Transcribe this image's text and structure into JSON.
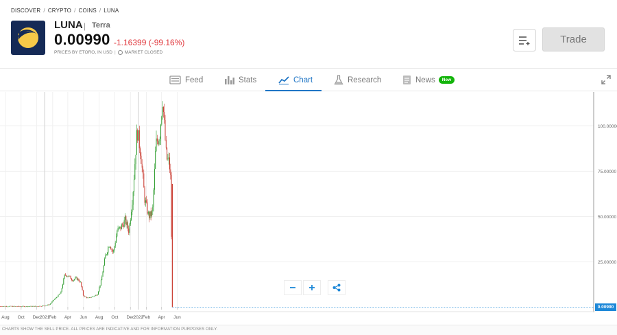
{
  "breadcrumb": {
    "discover": "DISCOVER",
    "crypto": "CRYPTO",
    "coins": "COINS",
    "luna": "LUNA",
    "separator": "/"
  },
  "instrument": {
    "symbol": "LUNA",
    "name": "Terra",
    "price": "0.00990",
    "change": "-1.16399 (-99.16%)",
    "price_note": "PRICES BY ETORO, IN USD",
    "market_status": "MARKET CLOSED",
    "logo_icon": "terra-luna-logo",
    "change_color": "#e0363b"
  },
  "actions": {
    "watchlist_icon": "add-to-list-icon",
    "trade_label": "Trade"
  },
  "tabs": [
    {
      "label": "Feed",
      "icon": "feed-icon",
      "active": false
    },
    {
      "label": "Stats",
      "icon": "stats-icon",
      "active": false
    },
    {
      "label": "Chart",
      "icon": "chart-icon",
      "active": true
    },
    {
      "label": "Research",
      "icon": "flask-icon",
      "active": false
    },
    {
      "label": "News",
      "icon": "news-icon",
      "active": false,
      "badge": "New"
    }
  ],
  "colors": {
    "accent": "#1f75c5",
    "up_candle": "#2e9c2e",
    "down_candle": "#c8362b",
    "price_tag": "#1e88d8"
  },
  "chart_data": {
    "type": "candlestick",
    "y_ticks": [
      "100.00000",
      "75.00000",
      "50.00000",
      "25.00000"
    ],
    "y_tick_values": [
      100,
      75,
      50,
      25
    ],
    "x_ticks": [
      "Aug",
      "Oct",
      "Dec",
      "2021",
      "Feb",
      "Apr",
      "Jun",
      "Aug",
      "Oct",
      "Dec",
      "2022",
      "Feb",
      "Apr",
      "Jun"
    ],
    "x_tick_dates": [
      "2020-08",
      "2020-10",
      "2020-12",
      "2021-01",
      "2021-02",
      "2021-04",
      "2021-06",
      "2021-08",
      "2021-10",
      "2021-12",
      "2022-01",
      "2022-02",
      "2022-04",
      "2022-06"
    ],
    "last_price_label": "0.00990",
    "close_series": [
      {
        "date": "2020-08-01",
        "close": 0.5
      },
      {
        "date": "2020-10-01",
        "close": 0.4
      },
      {
        "date": "2020-12-01",
        "close": 0.5
      },
      {
        "date": "2021-01-01",
        "close": 0.8
      },
      {
        "date": "2021-01-20",
        "close": 1.5
      },
      {
        "date": "2021-02-05",
        "close": 4
      },
      {
        "date": "2021-02-20",
        "close": 6
      },
      {
        "date": "2021-03-05",
        "close": 8
      },
      {
        "date": "2021-03-20",
        "close": 18
      },
      {
        "date": "2021-04-05",
        "close": 17
      },
      {
        "date": "2021-04-20",
        "close": 15
      },
      {
        "date": "2021-05-05",
        "close": 16
      },
      {
        "date": "2021-05-20",
        "close": 14
      },
      {
        "date": "2021-06-01",
        "close": 6
      },
      {
        "date": "2021-06-20",
        "close": 5
      },
      {
        "date": "2021-07-10",
        "close": 6
      },
      {
        "date": "2021-07-25",
        "close": 7
      },
      {
        "date": "2021-08-10",
        "close": 15
      },
      {
        "date": "2021-08-25",
        "close": 28
      },
      {
        "date": "2021-09-10",
        "close": 35
      },
      {
        "date": "2021-09-25",
        "close": 30
      },
      {
        "date": "2021-10-10",
        "close": 42
      },
      {
        "date": "2021-10-25",
        "close": 44
      },
      {
        "date": "2021-11-10",
        "close": 48
      },
      {
        "date": "2021-11-25",
        "close": 42
      },
      {
        "date": "2021-12-10",
        "close": 62
      },
      {
        "date": "2021-12-27",
        "close": 98
      },
      {
        "date": "2022-01-10",
        "close": 85
      },
      {
        "date": "2022-01-25",
        "close": 60
      },
      {
        "date": "2022-02-10",
        "close": 50
      },
      {
        "date": "2022-02-25",
        "close": 52
      },
      {
        "date": "2022-03-10",
        "close": 90
      },
      {
        "date": "2022-03-25",
        "close": 95
      },
      {
        "date": "2022-04-05",
        "close": 115
      },
      {
        "date": "2022-04-20",
        "close": 82
      },
      {
        "date": "2022-05-01",
        "close": 80
      },
      {
        "date": "2022-05-08",
        "close": 68
      },
      {
        "date": "2022-05-11",
        "close": 15
      },
      {
        "date": "2022-05-13",
        "close": 0.0099
      }
    ]
  },
  "zoom_controls": {
    "zoom_out_icon": "minus-icon",
    "zoom_in_icon": "plus-icon",
    "share_icon": "share-icon"
  },
  "footer": {
    "disclaimer": "CHARTS SHOW THE SELL PRICE. ALL PRICES ARE INDICATIVE AND FOR INFORMATION PURPOSES ONLY."
  }
}
